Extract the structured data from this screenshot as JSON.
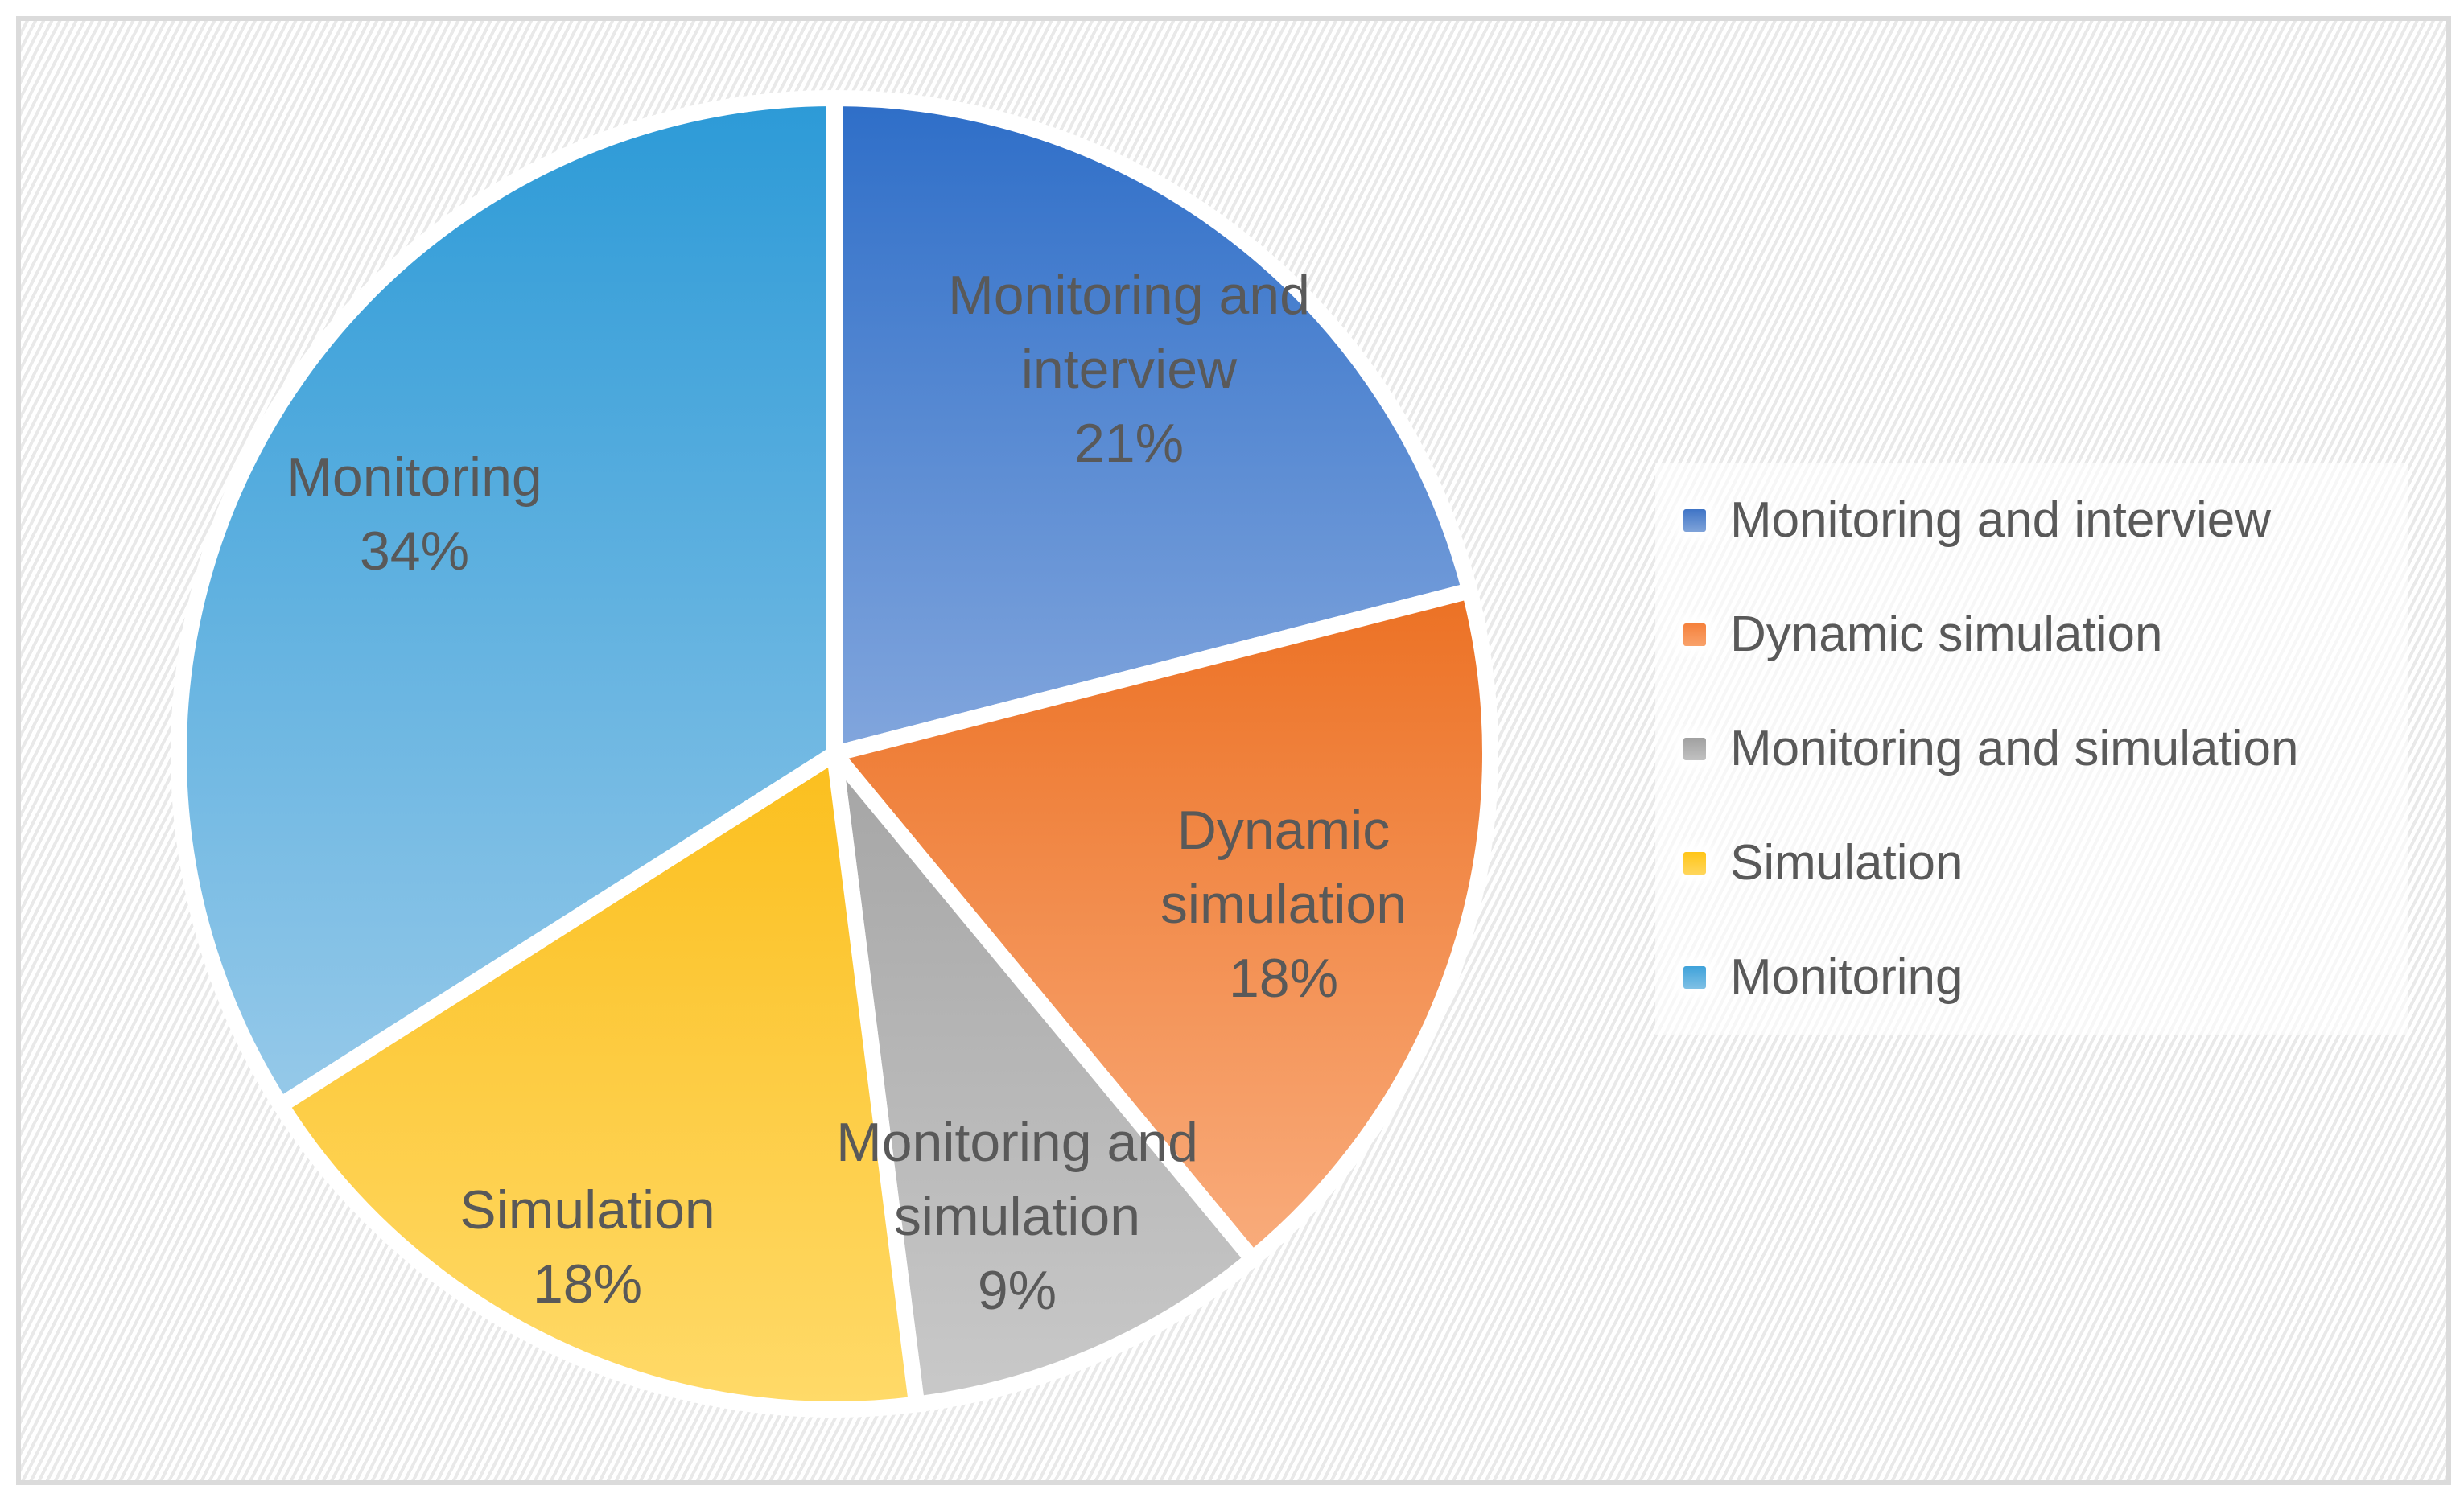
{
  "chart_data": {
    "type": "pie",
    "title": "",
    "unit": "%",
    "start_angle_deg": 0,
    "direction": "clockwise",
    "legend_position": "right",
    "categories": [
      "Monitoring and interview",
      "Dynamic simulation",
      "Monitoring and simulation",
      "Simulation",
      "Monitoring"
    ],
    "values": [
      21,
      18,
      9,
      18,
      34
    ],
    "slices": [
      {
        "label": "Monitoring and interview",
        "value": 21,
        "percent_text": "21%",
        "label_lines": [
          "Monitoring and",
          "interview",
          "21%"
        ],
        "color_top": "#2E6EC8",
        "color_bottom": "#82A6DD",
        "label_x": 1403,
        "label_y": 459
      },
      {
        "label": "Dynamic simulation",
        "value": 18,
        "percent_text": "18%",
        "label_lines": [
          "Dynamic",
          "simulation",
          "18%"
        ],
        "color_top": "#EC7124",
        "color_bottom": "#F9AC7C",
        "label_x": 1595,
        "label_y": 1124
      },
      {
        "label": "Monitoring and simulation",
        "value": 9,
        "percent_text": "9%",
        "label_lines": [
          "Monitoring and",
          "simulation",
          "9%"
        ],
        "color_top": "#A5A5A5",
        "color_bottom": "#C9C9C9",
        "label_x": 1264,
        "label_y": 1512
      },
      {
        "label": "Simulation",
        "value": 18,
        "percent_text": "18%",
        "label_lines": [
          "Simulation",
          "18%"
        ],
        "color_top": "#FBBF1E",
        "color_bottom": "#FFDA69",
        "label_x": 730,
        "label_y": 1550
      },
      {
        "label": "Monitoring",
        "value": 34,
        "percent_text": "34%",
        "label_lines": [
          "Monitoring",
          "34%"
        ],
        "color_top": "#2C9AD7",
        "color_bottom": "#96C9E9",
        "label_x": 515,
        "label_y": 639
      }
    ]
  },
  "legend": {
    "items": [
      {
        "label": "Monitoring and interview",
        "color_top": "#3F74C6",
        "color_bottom": "#7FA3D9"
      },
      {
        "label": "Dynamic simulation",
        "color_top": "#F5813C",
        "color_bottom": "#F9A26B"
      },
      {
        "label": "Monitoring and simulation",
        "color_top": "#A0A0A0",
        "color_bottom": "#C1C1C1"
      },
      {
        "label": "Simulation",
        "color_top": "#FFC517",
        "color_bottom": "#FFD65C"
      },
      {
        "label": "Monitoring",
        "color_top": "#3FA2DA",
        "color_bottom": "#7FC0E5"
      }
    ]
  },
  "colors": {
    "label_text": "#595959",
    "frame_border": "#dbdbdb",
    "hatch_stripe": "#e9e9e9",
    "slice_gap": "#ffffff"
  }
}
